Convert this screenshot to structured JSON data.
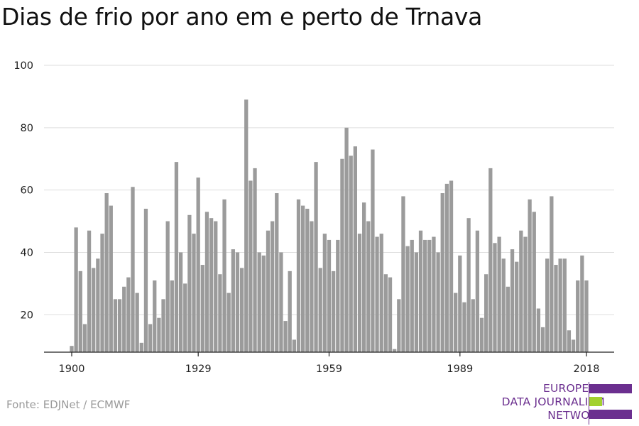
{
  "title": "Dias de frio por ano em e perto de Trnava",
  "source": "Fonte: EDJNet / ECMWF",
  "logo": {
    "line1": "EUROPEAN",
    "line2": "DATA JOURNALISM",
    "line3": "NETWORK",
    "colors": [
      "#6b2f8f",
      "#a3d12f",
      "#6b2f8f"
    ]
  },
  "colors": {
    "bar": "#9b9b9b",
    "grid": "#dddddd",
    "axis": "#222222"
  },
  "chart_data": {
    "type": "bar",
    "title": "Dias de frio por ano em e perto de Trnava",
    "xlabel": "",
    "ylabel": "",
    "ylim": [
      8,
      100
    ],
    "yticks": [
      20,
      40,
      60,
      80,
      100
    ],
    "xticks": [
      1900,
      1929,
      1959,
      1989,
      2018
    ],
    "grid": true,
    "x": [
      1900,
      1901,
      1902,
      1903,
      1904,
      1905,
      1906,
      1907,
      1908,
      1909,
      1910,
      1911,
      1912,
      1913,
      1914,
      1915,
      1916,
      1917,
      1918,
      1919,
      1920,
      1921,
      1922,
      1923,
      1924,
      1925,
      1926,
      1927,
      1928,
      1929,
      1930,
      1931,
      1932,
      1933,
      1934,
      1935,
      1936,
      1937,
      1938,
      1939,
      1940,
      1941,
      1942,
      1943,
      1944,
      1945,
      1946,
      1947,
      1948,
      1949,
      1950,
      1951,
      1952,
      1953,
      1954,
      1955,
      1956,
      1957,
      1958,
      1959,
      1960,
      1961,
      1962,
      1963,
      1964,
      1965,
      1966,
      1967,
      1968,
      1969,
      1970,
      1971,
      1972,
      1973,
      1974,
      1975,
      1976,
      1977,
      1978,
      1979,
      1980,
      1981,
      1982,
      1983,
      1984,
      1985,
      1986,
      1987,
      1988,
      1989,
      1990,
      1991,
      1992,
      1993,
      1994,
      1995,
      1996,
      1997,
      1998,
      1999,
      2000,
      2001,
      2002,
      2003,
      2004,
      2005,
      2006,
      2007,
      2008,
      2009,
      2010,
      2011,
      2012,
      2013,
      2014,
      2015,
      2016,
      2017,
      2018
    ],
    "values": [
      10,
      48,
      34,
      17,
      47,
      35,
      38,
      46,
      59,
      55,
      25,
      25,
      29,
      32,
      61,
      27,
      11,
      54,
      17,
      31,
      19,
      25,
      50,
      31,
      69,
      40,
      30,
      52,
      46,
      64,
      36,
      53,
      51,
      50,
      33,
      57,
      27,
      41,
      40,
      35,
      89,
      63,
      67,
      40,
      39,
      47,
      50,
      59,
      40,
      18,
      34,
      12,
      57,
      55,
      54,
      50,
      69,
      35,
      46,
      44,
      34,
      44,
      70,
      80,
      71,
      74,
      46,
      56,
      50,
      73,
      45,
      46,
      33,
      32,
      9,
      25,
      58,
      42,
      44,
      40,
      47,
      44,
      44,
      45,
      40,
      59,
      62,
      63,
      27,
      39,
      24,
      51,
      25,
      47,
      19,
      33,
      67,
      43,
      45,
      38,
      29,
      41,
      37,
      47,
      45,
      57,
      53,
      22,
      16,
      38,
      58,
      36,
      38,
      38,
      15,
      12,
      31,
      39,
      31
    ]
  }
}
